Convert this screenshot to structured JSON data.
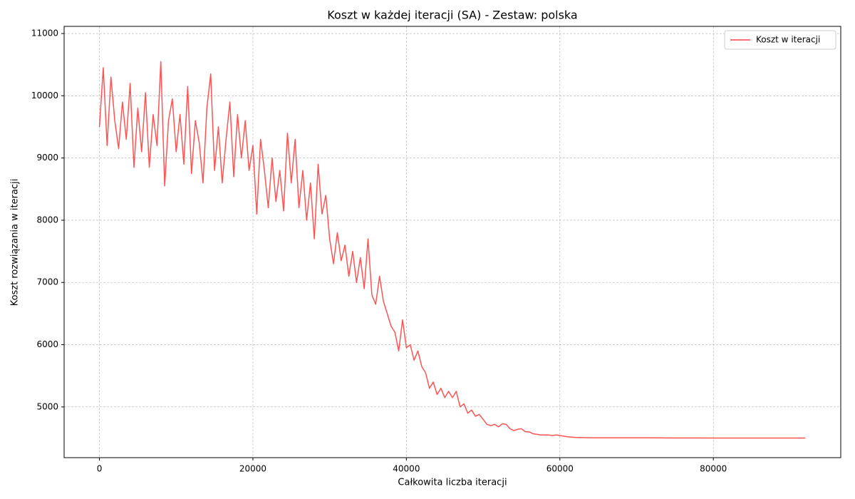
{
  "chart_data": {
    "type": "line",
    "title": "Koszt w każdej iteracji (SA) - Zestaw: polska",
    "x_label": "Całkowita liczba iteracji",
    "y_label": "Koszt rozwiązania w iteracji",
    "x": [
      0,
      500,
      1000,
      1500,
      2000,
      2500,
      3000,
      3500,
      4000,
      4500,
      5000,
      5500,
      6000,
      6500,
      7000,
      7500,
      8000,
      8500,
      9000,
      9500,
      10000,
      10500,
      11000,
      11500,
      12000,
      12500,
      13000,
      13500,
      14000,
      14500,
      15000,
      15500,
      16000,
      16500,
      17000,
      17500,
      18000,
      18500,
      19000,
      19500,
      20000,
      20500,
      21000,
      21500,
      22000,
      22500,
      23000,
      23500,
      24000,
      24500,
      25000,
      25500,
      26000,
      26500,
      27000,
      27500,
      28000,
      28500,
      29000,
      29500,
      30000,
      30500,
      31000,
      31500,
      32000,
      32500,
      33000,
      33500,
      34000,
      34500,
      35000,
      35500,
      36000,
      36500,
      37000,
      37500,
      38000,
      38500,
      39000,
      39500,
      40000,
      40500,
      41000,
      41500,
      42000,
      42500,
      43000,
      43500,
      44000,
      44500,
      45000,
      45500,
      46000,
      46500,
      47000,
      47500,
      48000,
      48500,
      49000,
      49500,
      50000,
      50500,
      51000,
      51500,
      52000,
      52500,
      53000,
      53500,
      54000,
      54500,
      55000,
      55500,
      56000,
      56500,
      57000,
      57500,
      58000,
      58500,
      59000,
      59500,
      60000,
      61000,
      62000,
      64000,
      66000,
      68000,
      70000,
      72000,
      74000,
      76000,
      78000,
      80000,
      82000,
      84000,
      86000,
      88000,
      90000,
      92000
    ],
    "series": [
      {
        "name": "Koszt w iteracji",
        "color": "#ff4040",
        "values": [
          9500,
          10450,
          9200,
          10300,
          9600,
          9150,
          9900,
          9300,
          10200,
          8850,
          9800,
          9100,
          10050,
          8850,
          9700,
          9200,
          10550,
          8550,
          9600,
          9950,
          9100,
          9700,
          8900,
          10150,
          8750,
          9600,
          9250,
          8600,
          9800,
          10350,
          8800,
          9500,
          8600,
          9300,
          9900,
          8700,
          9700,
          9000,
          9600,
          8800,
          9200,
          8100,
          9300,
          8800,
          8200,
          9000,
          8300,
          8800,
          8150,
          9400,
          8600,
          9300,
          8200,
          8800,
          8000,
          8600,
          7700,
          8900,
          8100,
          8400,
          7700,
          7300,
          7800,
          7350,
          7600,
          7100,
          7500,
          7000,
          7400,
          6900,
          7700,
          6800,
          6650,
          7100,
          6700,
          6500,
          6300,
          6200,
          5900,
          6400,
          5950,
          6000,
          5750,
          5900,
          5650,
          5550,
          5300,
          5400,
          5200,
          5300,
          5150,
          5250,
          5150,
          5250,
          5000,
          5050,
          4900,
          4950,
          4850,
          4880,
          4800,
          4720,
          4700,
          4720,
          4680,
          4730,
          4720,
          4650,
          4620,
          4640,
          4650,
          4600,
          4600,
          4570,
          4560,
          4550,
          4550,
          4550,
          4540,
          4550,
          4540,
          4520,
          4510,
          4505,
          4505,
          4505,
          4505,
          4505,
          4502,
          4502,
          4502,
          4500,
          4500,
          4500,
          4500,
          4500,
          4500,
          4500
        ]
      }
    ],
    "xlim": [
      -4600,
      96600
    ],
    "ylim": [
      4185,
      11115
    ],
    "xticks": [
      0,
      20000,
      40000,
      60000,
      80000
    ],
    "yticks": [
      5000,
      6000,
      7000,
      8000,
      9000,
      10000,
      11000
    ],
    "grid": true,
    "legend": "upper right"
  }
}
